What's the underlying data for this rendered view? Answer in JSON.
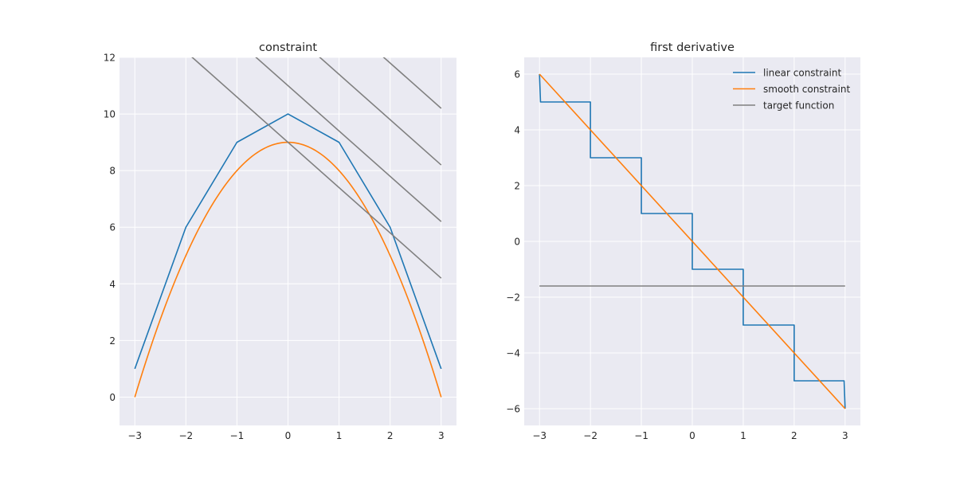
{
  "chart_data": [
    {
      "type": "line",
      "title": "constraint",
      "xlabel": "",
      "ylabel": "",
      "xlim": [
        -3.3,
        3.3
      ],
      "ylim": [
        -1,
        12
      ],
      "xticks": [
        -3,
        -2,
        -1,
        0,
        1,
        2,
        3
      ],
      "xtick_labels": [
        "−3",
        "−2",
        "−1",
        "0",
        "1",
        "2",
        "3"
      ],
      "yticks": [
        0,
        2,
        4,
        6,
        8,
        10,
        12
      ],
      "ytick_labels": [
        "0",
        "2",
        "4",
        "6",
        "8",
        "10",
        "12"
      ],
      "grid": true,
      "series": [
        {
          "name": "linear constraint",
          "color": "#1f77b4",
          "x": [
            -3,
            -2,
            -1,
            0,
            1,
            2,
            3
          ],
          "y": [
            1,
            6,
            9,
            10,
            9,
            6,
            1
          ]
        },
        {
          "name": "smooth constraint",
          "color": "#ff7f0e",
          "function": "9 - x^2",
          "x_range": [
            -3,
            3
          ]
        },
        {
          "name": "target function",
          "color": "#808080",
          "x": [
            -3,
            3
          ],
          "y": [
            13.8,
            4.2
          ]
        },
        {
          "name": "target function",
          "color": "#808080",
          "x": [
            -3,
            3
          ],
          "y": [
            15.8,
            6.2
          ]
        },
        {
          "name": "target function",
          "color": "#808080",
          "x": [
            -3,
            3
          ],
          "y": [
            17.8,
            8.2
          ]
        },
        {
          "name": "target function",
          "color": "#808080",
          "x": [
            -3,
            3
          ],
          "y": [
            19.8,
            10.2
          ]
        }
      ]
    },
    {
      "type": "line",
      "title": "first derivative",
      "xlabel": "",
      "ylabel": "",
      "xlim": [
        -3.3,
        3.3
      ],
      "ylim": [
        -6.6,
        6.6
      ],
      "xticks": [
        -3,
        -2,
        -1,
        0,
        1,
        2,
        3
      ],
      "xtick_labels": [
        "−3",
        "−2",
        "−1",
        "0",
        "1",
        "2",
        "3"
      ],
      "yticks": [
        -6,
        -4,
        -2,
        0,
        2,
        4,
        6
      ],
      "ytick_labels": [
        "−6",
        "−4",
        "−2",
        "0",
        "2",
        "4",
        "6"
      ],
      "grid": true,
      "legend_position": "top-right",
      "series": [
        {
          "name": "linear constraint",
          "color": "#1f77b4",
          "x": [
            -3,
            -2.98,
            -2,
            -2,
            -1,
            -1,
            0,
            0,
            1,
            1,
            2,
            2,
            2.98,
            3
          ],
          "y": [
            6,
            5,
            5,
            3,
            3,
            1,
            1,
            -1,
            -1,
            -3,
            -3,
            -5,
            -5,
            -6
          ]
        },
        {
          "name": "smooth constraint",
          "color": "#ff7f0e",
          "x": [
            -3,
            3
          ],
          "y": [
            6,
            -6
          ]
        },
        {
          "name": "target function",
          "color": "#808080",
          "x": [
            -3,
            3
          ],
          "y": [
            -1.6,
            -1.6
          ]
        }
      ],
      "legend": [
        {
          "label": "linear constraint",
          "color": "#1f77b4"
        },
        {
          "label": "smooth constraint",
          "color": "#ff7f0e"
        },
        {
          "label": "target function",
          "color": "#808080"
        }
      ]
    }
  ]
}
